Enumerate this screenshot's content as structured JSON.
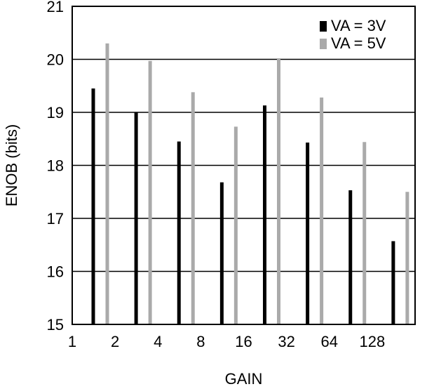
{
  "chart_data": {
    "type": "bar",
    "xlabel": "GAIN",
    "ylabel": "ENOB (bits)",
    "ylim": [
      15,
      21
    ],
    "y_ticks": [
      "15",
      "16",
      "17",
      "18",
      "19",
      "20",
      "21"
    ],
    "x_ticks": [
      "1",
      "2",
      "4",
      "8",
      "16",
      "32",
      "64",
      "128"
    ],
    "categories": [
      "1",
      "2",
      "4",
      "8",
      "16",
      "32",
      "64",
      "128"
    ],
    "grid": true,
    "legend_position": "top-right",
    "series": [
      {
        "name": "VA = 3V",
        "color": "#000000",
        "values": [
          19.45,
          19.0,
          18.45,
          17.68,
          19.13,
          18.43,
          17.53,
          16.57
        ]
      },
      {
        "name": "VA = 5V",
        "color": "#aaaaaa",
        "values": [
          20.3,
          19.97,
          19.38,
          18.73,
          20.02,
          19.28,
          18.44,
          17.5
        ]
      }
    ]
  }
}
